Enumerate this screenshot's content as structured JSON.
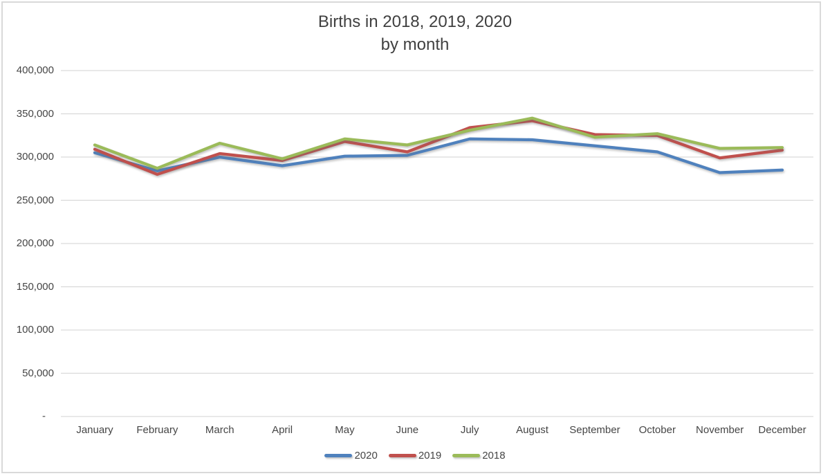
{
  "chart_data": {
    "type": "line",
    "title": "Births in 2018, 2019, 2020",
    "subtitle": "by month",
    "categories": [
      "January",
      "February",
      "March",
      "April",
      "May",
      "June",
      "July",
      "August",
      "September",
      "October",
      "November",
      "December"
    ],
    "series": [
      {
        "name": "2020",
        "color": "#4F81BD",
        "values": [
          305000,
          284000,
          300000,
          290000,
          301000,
          302000,
          321000,
          320000,
          313000,
          306000,
          282000,
          285000
        ]
      },
      {
        "name": "2019",
        "color": "#C0504D",
        "values": [
          309000,
          280000,
          304000,
          296000,
          318000,
          306000,
          334000,
          342000,
          326000,
          325000,
          299000,
          308000
        ]
      },
      {
        "name": "2018",
        "color": "#9BBB59",
        "values": [
          314000,
          287000,
          316000,
          298000,
          321000,
          314000,
          331000,
          345000,
          323000,
          327000,
          310000,
          311000
        ]
      }
    ],
    "y_axis": {
      "min": 0,
      "max": 400000,
      "step": 50000,
      "tick_labels_bottom_to_top": [
        "-",
        "50,000",
        "100,000",
        "150,000",
        "200,000",
        "250,000",
        "300,000",
        "350,000",
        "400,000"
      ]
    },
    "legend": {
      "position": "bottom",
      "entries": [
        "2020",
        "2019",
        "2018"
      ]
    },
    "grid": true,
    "colors": {
      "gridline": "#D9D9D9",
      "text": "#454545",
      "title_text": "#404040",
      "border": "#D9D9D9",
      "background": "#FFFFFF"
    }
  }
}
